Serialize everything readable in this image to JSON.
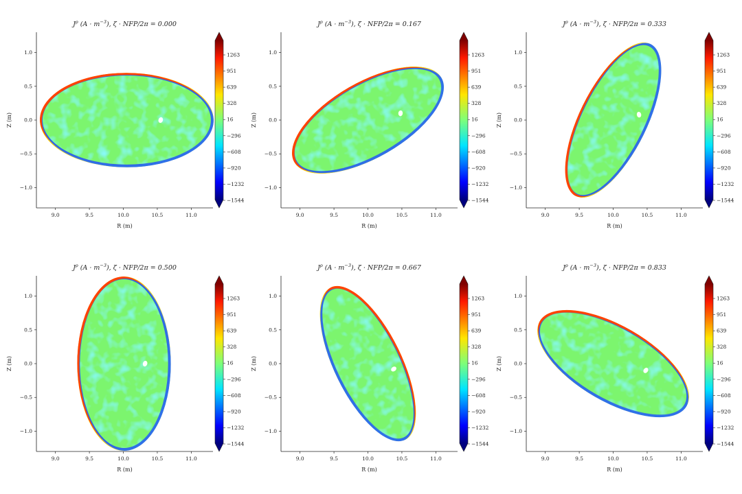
{
  "figure": {
    "title_prefix": "J^ρ (A · m^−3), ζ · NFP/2π = ",
    "panel_count": 6
  },
  "chart_data": {
    "type": "heatmap",
    "colormap": "jet",
    "colorbar": {
      "extend": "both",
      "range": [
        -1544,
        1544
      ],
      "tick_labels": [
        "1263",
        "951",
        "639",
        "328",
        "16",
        "−296",
        "−608",
        "−920",
        "−1232",
        "−1544"
      ]
    },
    "axes": {
      "xlabel": "R (m)",
      "ylabel": "Z (m)",
      "xlim": [
        8.72,
        11.32
      ],
      "ylim": [
        -1.3,
        1.3
      ],
      "xticks": [
        "9.0",
        "9.5",
        "10.0",
        "10.5",
        "11.0"
      ],
      "yticks": [
        "1.0",
        "0.5",
        "0.0",
        "−0.5",
        "−1.0"
      ]
    },
    "panels": [
      {
        "phase": "0.000",
        "title": "J^ρ (A · m^−3), ζ · NFP/2π = 0.000",
        "center": [
          10.05,
          0.0
        ],
        "semi_axes": [
          1.28,
          0.7
        ],
        "tilt_deg": 0,
        "hole": [
          10.55,
          0.0
        ]
      },
      {
        "phase": "0.167",
        "title": "J^ρ (A · m^−3), ζ · NFP/2π = 0.167",
        "center": [
          10.0,
          0.0
        ],
        "semi_axes": [
          1.25,
          0.56
        ],
        "tilt_deg": 30,
        "hole": [
          10.48,
          0.1
        ]
      },
      {
        "phase": "0.333",
        "title": "J^ρ (A · m^−3), ζ · NFP/2π = 0.333",
        "center": [
          10.0,
          0.0
        ],
        "semi_axes": [
          1.25,
          0.5
        ],
        "tilt_deg": 64,
        "hole": [
          10.38,
          0.08
        ]
      },
      {
        "phase": "0.500",
        "title": "J^ρ (A · m^−3), ζ · NFP/2π = 0.500",
        "center": [
          10.01,
          0.0
        ],
        "semi_axes": [
          0.69,
          1.29
        ],
        "tilt_deg": 0,
        "hole": [
          10.32,
          0.0
        ]
      },
      {
        "phase": "0.667",
        "title": "J^ρ (A · m^−3), ζ · NFP/2π = 0.667",
        "center": [
          10.0,
          0.0
        ],
        "semi_axes": [
          1.25,
          0.5
        ],
        "tilt_deg": -64,
        "hole": [
          10.38,
          -0.08
        ]
      },
      {
        "phase": "0.833",
        "title": "J^ρ (A · m^−3), ζ · NFP/2π = 0.833",
        "center": [
          10.0,
          0.0
        ],
        "semi_axes": [
          1.25,
          0.56
        ],
        "tilt_deg": -30,
        "hole": [
          10.48,
          -0.1
        ]
      }
    ]
  }
}
